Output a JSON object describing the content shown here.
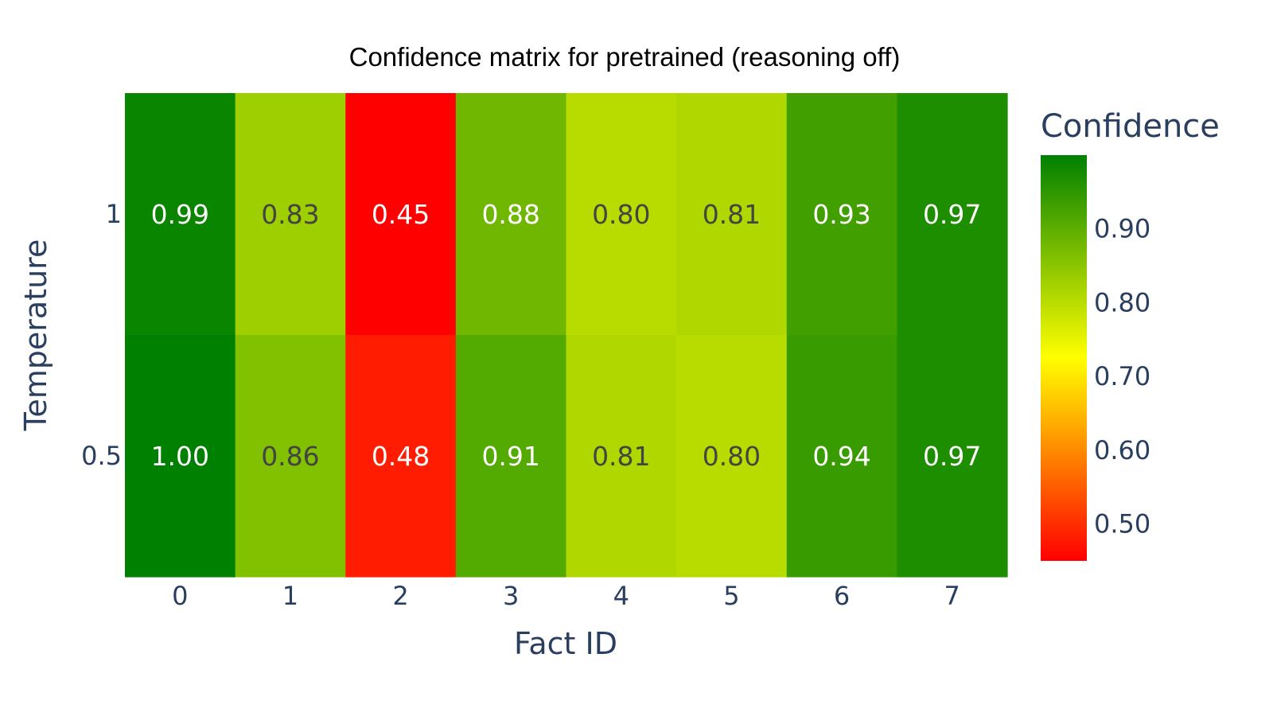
{
  "chart_data": {
    "type": "heatmap",
    "title": "Confidence matrix for pretrained (reasoning off)",
    "xlabel": "Fact ID",
    "ylabel": "Temperature",
    "x": [
      "0",
      "1",
      "2",
      "3",
      "4",
      "5",
      "6",
      "7"
    ],
    "y": [
      "1",
      "0.5"
    ],
    "z": [
      [
        0.99,
        0.83,
        0.45,
        0.88,
        0.8,
        0.81,
        0.93,
        0.97
      ],
      [
        1.0,
        0.86,
        0.48,
        0.91,
        0.81,
        0.8,
        0.94,
        0.97
      ]
    ],
    "text": [
      [
        "0.99",
        "0.83",
        "0.45",
        "0.88",
        "0.80",
        "0.81",
        "0.93",
        "0.97"
      ],
      [
        "1.00",
        "0.86",
        "0.48",
        "0.91",
        "0.81",
        "0.80",
        "0.94",
        "0.97"
      ]
    ],
    "colorbar": {
      "title": "Confidence",
      "range": [
        0.45,
        1.0
      ],
      "ticks": [
        0.9,
        0.8,
        0.7,
        0.6,
        0.5
      ],
      "tick_labels": [
        "0.90",
        "0.80",
        "0.70",
        "0.60",
        "0.50"
      ],
      "colorscale": [
        [
          0.0,
          "#ff0000"
        ],
        [
          0.5,
          "#ffff00"
        ],
        [
          1.0,
          "#008000"
        ]
      ],
      "colorscale_values": [
        0.45,
        0.725,
        1.0
      ]
    },
    "grid": false,
    "legend": "none"
  }
}
